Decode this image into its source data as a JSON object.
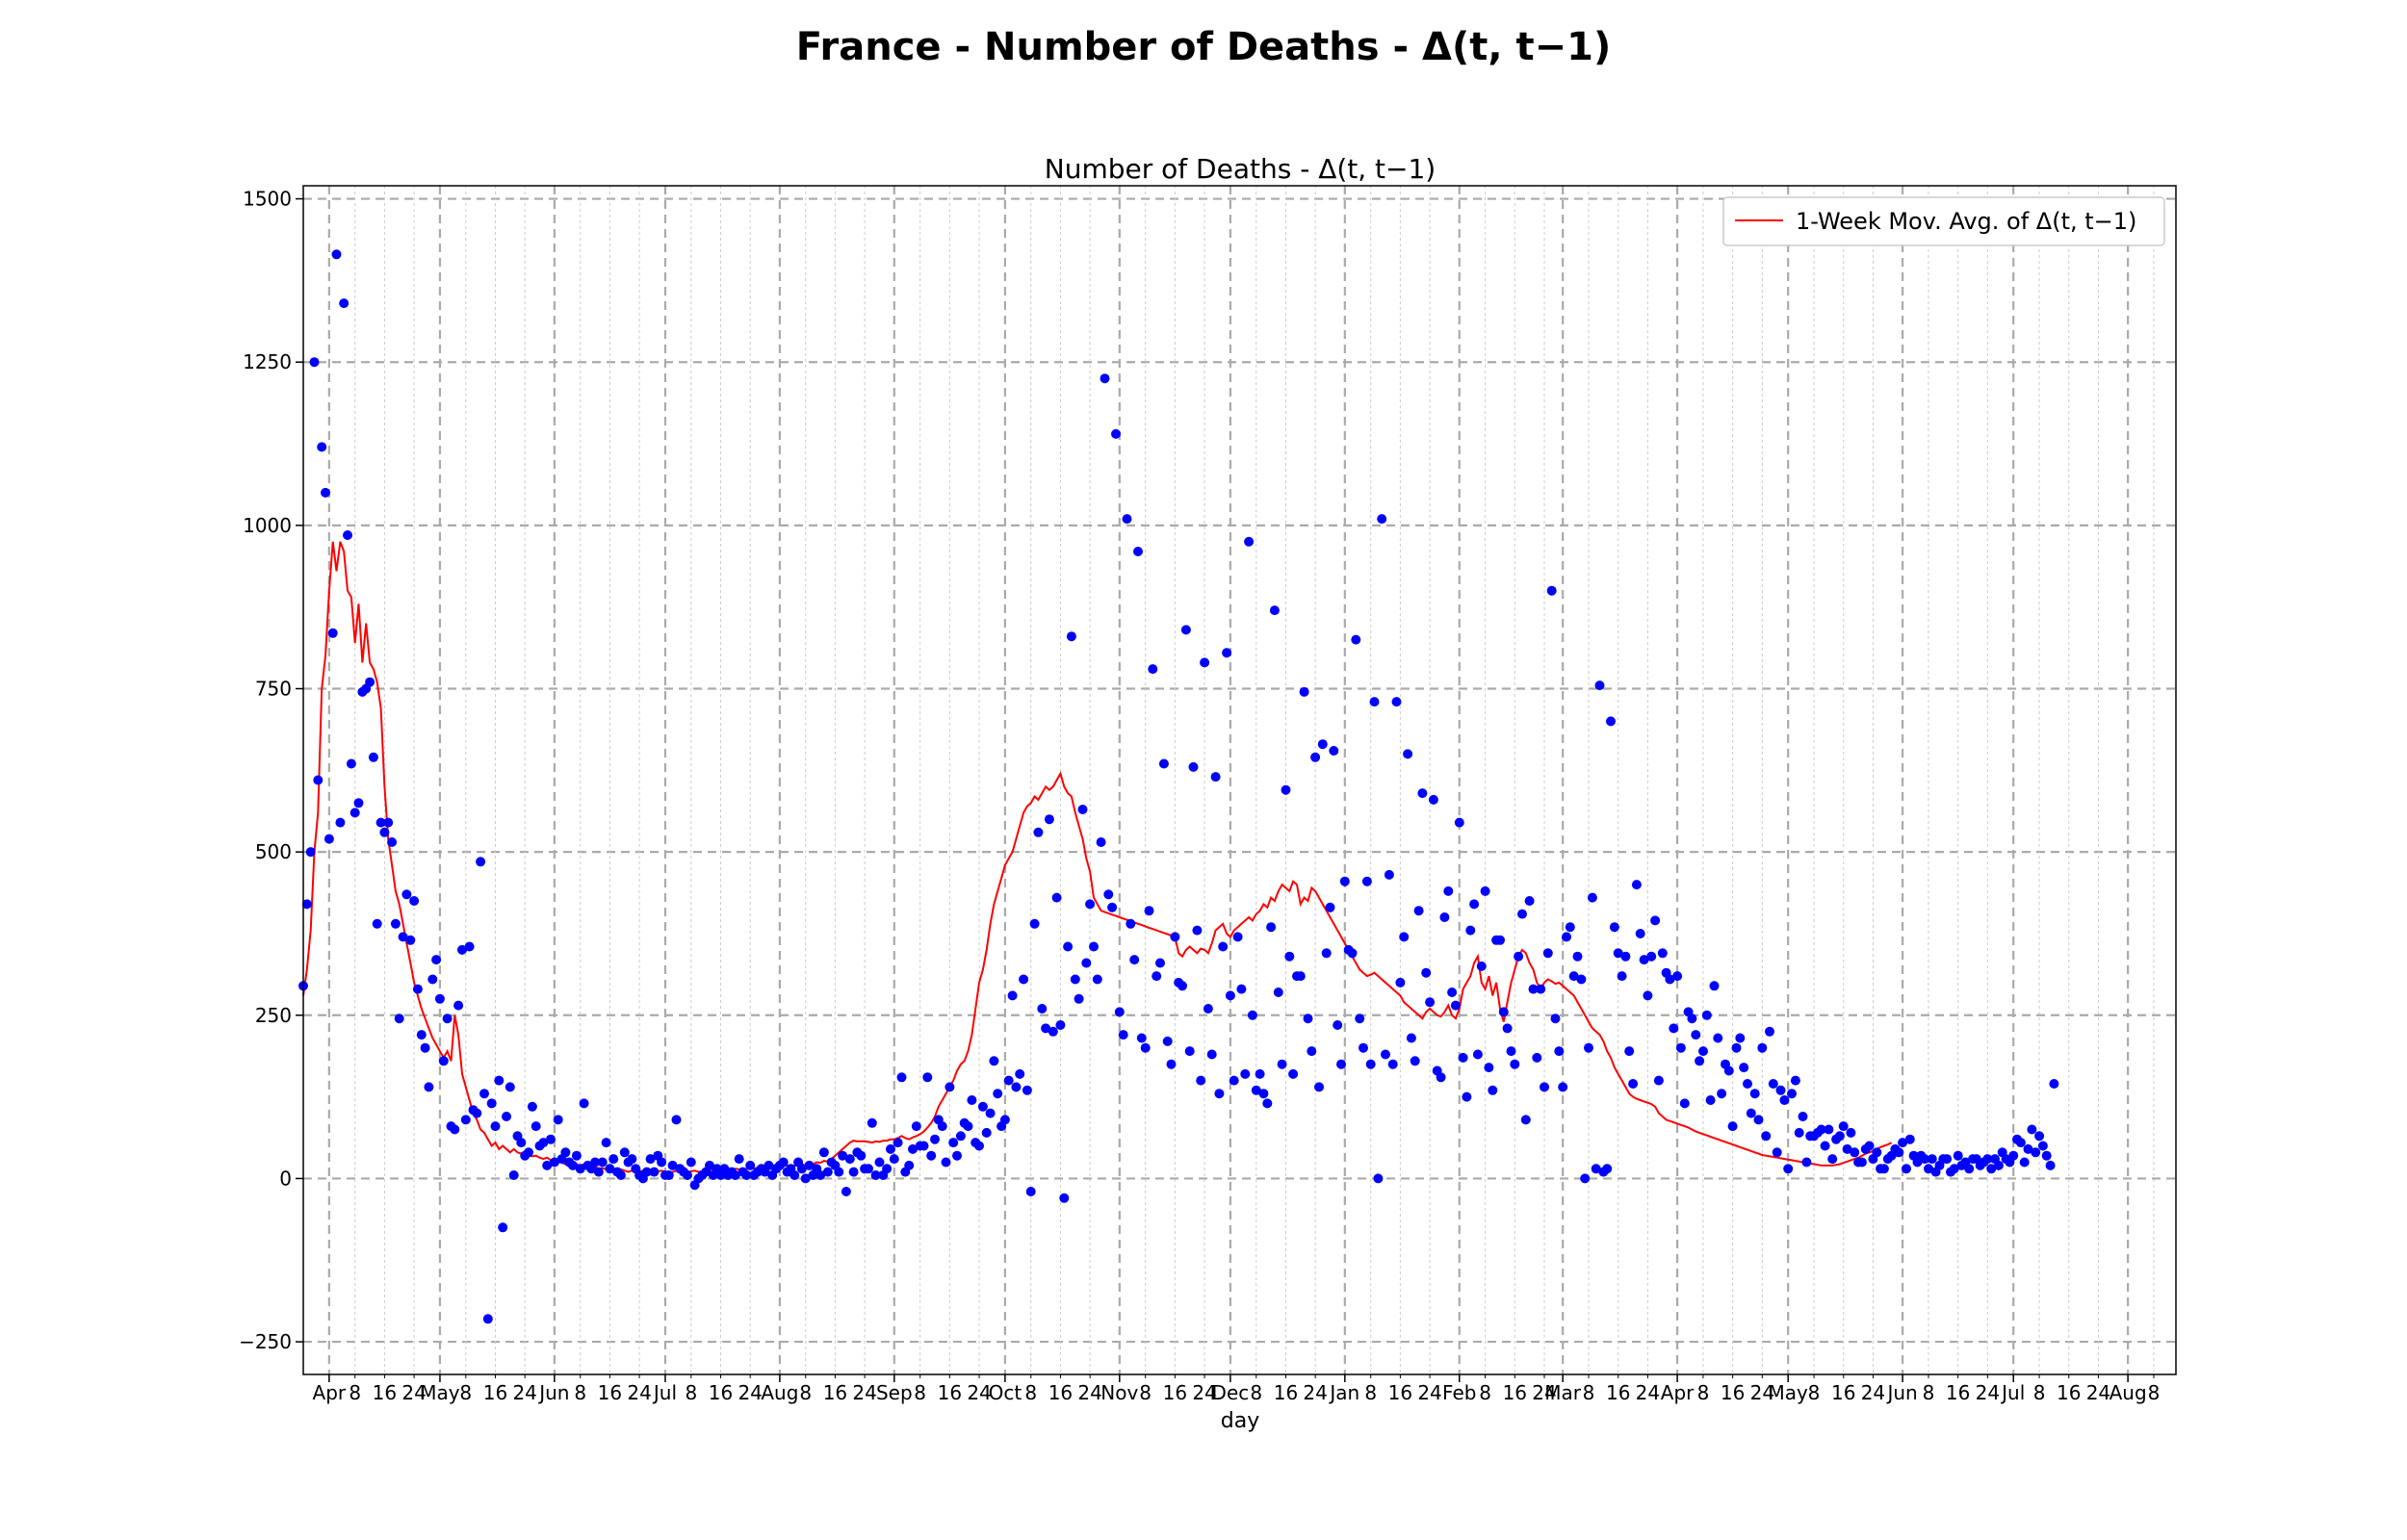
{
  "chart_data": {
    "type": "scatter",
    "suptitle": "France - Number of Deaths - Δ(t, t−1)",
    "title": "Number of Deaths - Δ(t, t−1)",
    "xlabel": "day",
    "ylabel": "",
    "x_start": "2020-03-25",
    "x_range": [
      "2020-03-25",
      "2021-08-14"
    ],
    "ylim": [
      -300,
      1520
    ],
    "yticks": [
      -250,
      0,
      250,
      500,
      750,
      1000,
      1250,
      1500
    ],
    "x_major_ticks": [
      {
        "date": "2020-04-01",
        "label": "Apr"
      },
      {
        "date": "2020-05-01",
        "label": "May"
      },
      {
        "date": "2020-06-01",
        "label": "Jun"
      },
      {
        "date": "2020-07-01",
        "label": "Jul"
      },
      {
        "date": "2020-08-01",
        "label": "Aug"
      },
      {
        "date": "2020-09-01",
        "label": "Sep"
      },
      {
        "date": "2020-10-01",
        "label": "Oct"
      },
      {
        "date": "2020-11-01",
        "label": "Nov"
      },
      {
        "date": "2020-12-01",
        "label": "Dec"
      },
      {
        "date": "2021-01-01",
        "label": "Jan"
      },
      {
        "date": "2021-02-01",
        "label": "Feb"
      },
      {
        "date": "2021-03-01",
        "label": "Mar"
      },
      {
        "date": "2021-04-01",
        "label": "Apr"
      },
      {
        "date": "2021-05-01",
        "label": "May"
      },
      {
        "date": "2021-06-01",
        "label": "Jun"
      },
      {
        "date": "2021-07-01",
        "label": "Jul"
      },
      {
        "date": "2021-08-01",
        "label": "Aug"
      }
    ],
    "minor_tick_days": [
      "8",
      "16",
      "24"
    ],
    "grid": true,
    "legend_position": "top-right",
    "series": [
      {
        "name": "",
        "kind": "scatter",
        "color": "#0000ff",
        "x_start": "2020-03-25",
        "values": [
          295,
          420,
          500,
          1250,
          610,
          1120,
          1050,
          520,
          835,
          1415,
          545,
          1340,
          985,
          635,
          560,
          575,
          745,
          750,
          760,
          645,
          390,
          545,
          530,
          545,
          515,
          390,
          245,
          370,
          435,
          365,
          425,
          290,
          220,
          200,
          140,
          305,
          335,
          275,
          180,
          245,
          80,
          75,
          265,
          350,
          90,
          355,
          105,
          100,
          485,
          130,
          -215,
          115,
          80,
          150,
          -75,
          95,
          140,
          5,
          65,
          55,
          35,
          40,
          110,
          80,
          50,
          55,
          20,
          60,
          25,
          90,
          30,
          40,
          25,
          20,
          35,
          15,
          115,
          20,
          15,
          25,
          10,
          25,
          55,
          15,
          30,
          10,
          5,
          40,
          25,
          30,
          15,
          5,
          0,
          10,
          30,
          10,
          35,
          25,
          5,
          5,
          20,
          90,
          15,
          10,
          5,
          25,
          -10,
          0,
          5,
          10,
          20,
          5,
          15,
          5,
          15,
          5,
          10,
          5,
          30,
          10,
          5,
          20,
          5,
          10,
          15,
          10,
          20,
          5,
          15,
          20,
          25,
          10,
          15,
          5,
          25,
          15,
          0,
          20,
          5,
          15,
          5,
          40,
          10,
          25,
          20,
          10,
          35,
          -20,
          30,
          10,
          40,
          35,
          15,
          15,
          85,
          5,
          25,
          5,
          15,
          45,
          30,
          55,
          155,
          10,
          20,
          45,
          80,
          50,
          50,
          155,
          35,
          60,
          90,
          80,
          25,
          140,
          55,
          35,
          65,
          85,
          80,
          120,
          55,
          50,
          110,
          70,
          100,
          180,
          130,
          80,
          90,
          150,
          280,
          140,
          160,
          305,
          135,
          -20,
          390,
          530,
          260,
          230,
          550,
          225,
          430,
          235,
          -30,
          355,
          830,
          305,
          275,
          565,
          330,
          420,
          355,
          305,
          515,
          1225,
          435,
          415,
          1140,
          255,
          220,
          1010,
          390,
          335,
          960,
          215,
          200,
          410,
          780,
          310,
          330,
          635,
          210,
          175,
          370,
          300,
          295,
          840,
          195,
          630,
          380,
          150,
          790,
          260,
          190,
          615,
          130,
          355,
          805,
          280,
          150,
          370,
          290,
          160,
          975,
          250,
          135,
          160,
          130,
          115,
          385,
          870,
          285,
          175,
          595,
          340,
          160,
          310,
          310,
          745,
          245,
          195,
          645,
          140,
          665,
          345,
          415,
          655,
          235,
          175,
          455,
          350,
          345,
          825,
          245,
          200,
          455,
          175,
          730,
          0,
          1010,
          190,
          465,
          175,
          730,
          300,
          370,
          650,
          215,
          180,
          410,
          590,
          315,
          270,
          580,
          165,
          155,
          400,
          440,
          285,
          265,
          545,
          185,
          125,
          380,
          420,
          190,
          325,
          440,
          170,
          135,
          365,
          365,
          255,
          230,
          195,
          175,
          340,
          405,
          90,
          425,
          290,
          185,
          290,
          140,
          345,
          900,
          245,
          195,
          140,
          370,
          385,
          310,
          340,
          305,
          0,
          200,
          430,
          15,
          755,
          10,
          15,
          700,
          385,
          345,
          310,
          340,
          195,
          145,
          450,
          375,
          335,
          280,
          340,
          395,
          150,
          345,
          315,
          305,
          230,
          310,
          200,
          115,
          255,
          245,
          220,
          180,
          195,
          250,
          120,
          295,
          215,
          130,
          175,
          165,
          80,
          200,
          215,
          170,
          145,
          100,
          130,
          90,
          200,
          65,
          225,
          145,
          40,
          135,
          120,
          15,
          130,
          150,
          70,
          95,
          25,
          65,
          65,
          70,
          75,
          50,
          75,
          30,
          60,
          65,
          80,
          45,
          70,
          40,
          25,
          25,
          45,
          50,
          30,
          40,
          15,
          15,
          30,
          35,
          45,
          40,
          55,
          15,
          60,
          35,
          25,
          35,
          30,
          15,
          30,
          10,
          20,
          30,
          30,
          10,
          15,
          35,
          20,
          25,
          15,
          30,
          30,
          20,
          25,
          30,
          15,
          30,
          20,
          40,
          30,
          25,
          35,
          60,
          55,
          25,
          45,
          75,
          40,
          65,
          50,
          35,
          20,
          145
        ]
      },
      {
        "name": "1-Week Mov. Avg. of Δ(t, t−1)",
        "kind": "line",
        "color": "#ff0000",
        "x_start": "2020-03-25",
        "values": [
          280,
          320,
          380,
          500,
          560,
          750,
          800,
          900,
          975,
          930,
          975,
          960,
          900,
          890,
          820,
          880,
          790,
          850,
          790,
          780,
          760,
          720,
          600,
          520,
          480,
          440,
          420,
          390,
          360,
          330,
          300,
          280,
          260,
          245,
          230,
          215,
          205,
          195,
          185,
          195,
          180,
          250,
          220,
          160,
          140,
          120,
          100,
          90,
          75,
          70,
          60,
          50,
          55,
          45,
          50,
          45,
          40,
          45,
          40,
          38,
          36,
          35,
          34,
          35,
          32,
          30,
          32,
          28,
          30,
          26,
          24,
          22,
          25,
          24,
          22,
          20,
          22,
          18,
          20,
          18,
          15,
          16,
          14,
          15,
          12,
          13,
          14,
          12,
          10,
          12,
          10,
          11,
          12,
          10,
          9,
          10,
          11,
          12,
          10,
          9,
          10,
          12,
          10,
          9,
          10,
          11,
          12,
          10,
          11,
          12,
          13,
          14,
          12,
          13,
          12,
          14,
          13,
          15,
          14,
          15,
          14,
          16,
          15,
          17,
          15,
          16,
          18,
          16,
          17,
          18,
          19,
          20,
          18,
          20,
          19,
          22,
          20,
          24,
          22,
          25,
          24,
          27,
          26,
          30,
          35,
          40,
          45,
          50,
          55,
          58,
          57,
          57,
          57,
          56,
          55,
          57,
          56,
          58,
          58,
          60,
          60,
          62,
          65,
          62,
          60,
          63,
          65,
          68,
          72,
          78,
          85,
          95,
          110,
          120,
          130,
          140,
          150,
          165,
          175,
          180,
          195,
          220,
          260,
          300,
          320,
          350,
          390,
          420,
          440,
          460,
          480,
          490,
          500,
          520,
          540,
          560,
          570,
          575,
          585,
          580,
          590,
          600,
          595,
          600,
          610,
          620,
          600,
          590,
          585,
          560,
          540,
          520,
          490,
          470,
          430,
          420,
          410,
          408,
          406,
          404,
          402,
          400,
          398,
          396,
          394,
          392,
          390,
          388,
          386,
          384,
          382,
          380,
          378,
          376,
          374,
          372,
          370,
          345,
          340,
          350,
          355,
          350,
          345,
          352,
          350,
          345,
          360,
          380,
          385,
          390,
          375,
          370,
          380,
          385,
          390,
          395,
          400,
          395,
          405,
          410,
          420,
          415,
          430,
          425,
          440,
          450,
          445,
          440,
          455,
          450,
          420,
          430,
          425,
          445,
          440,
          430,
          420,
          410,
          400,
          390,
          380,
          370,
          360,
          350,
          340,
          330,
          320,
          315,
          310,
          312,
          315,
          310,
          305,
          300,
          295,
          290,
          285,
          280,
          270,
          265,
          260,
          255,
          250,
          245,
          255,
          260,
          255,
          250,
          248,
          255,
          265,
          250,
          245,
          260,
          290,
          300,
          310,
          330,
          340,
          300,
          290,
          310,
          280,
          300,
          260,
          240,
          270,
          300,
          320,
          340,
          350,
          345,
          330,
          320,
          300,
          290,
          300,
          305,
          302,
          298,
          300,
          295,
          290,
          285,
          280,
          270,
          260,
          250,
          240,
          230,
          225,
          220,
          210,
          195,
          185,
          170,
          160,
          150,
          140,
          130,
          125,
          122,
          120,
          118,
          116,
          114,
          110,
          100,
          95,
          90,
          88,
          86,
          84,
          82,
          80,
          78,
          75,
          72,
          70,
          68,
          66,
          64,
          62,
          60,
          58,
          56,
          54,
          52,
          50,
          48,
          46,
          44,
          42,
          40,
          38,
          36,
          35,
          34,
          33,
          32,
          31,
          30,
          29,
          28,
          27,
          26,
          25,
          24,
          23,
          22,
          21,
          20,
          20,
          20,
          20,
          21,
          22,
          24,
          26,
          28,
          30,
          32,
          35,
          38,
          40,
          42,
          45,
          48,
          50,
          52,
          55
        ]
      }
    ],
    "legend": [
      "1-Week Mov. Avg. of Δ(t, t−1)"
    ]
  }
}
